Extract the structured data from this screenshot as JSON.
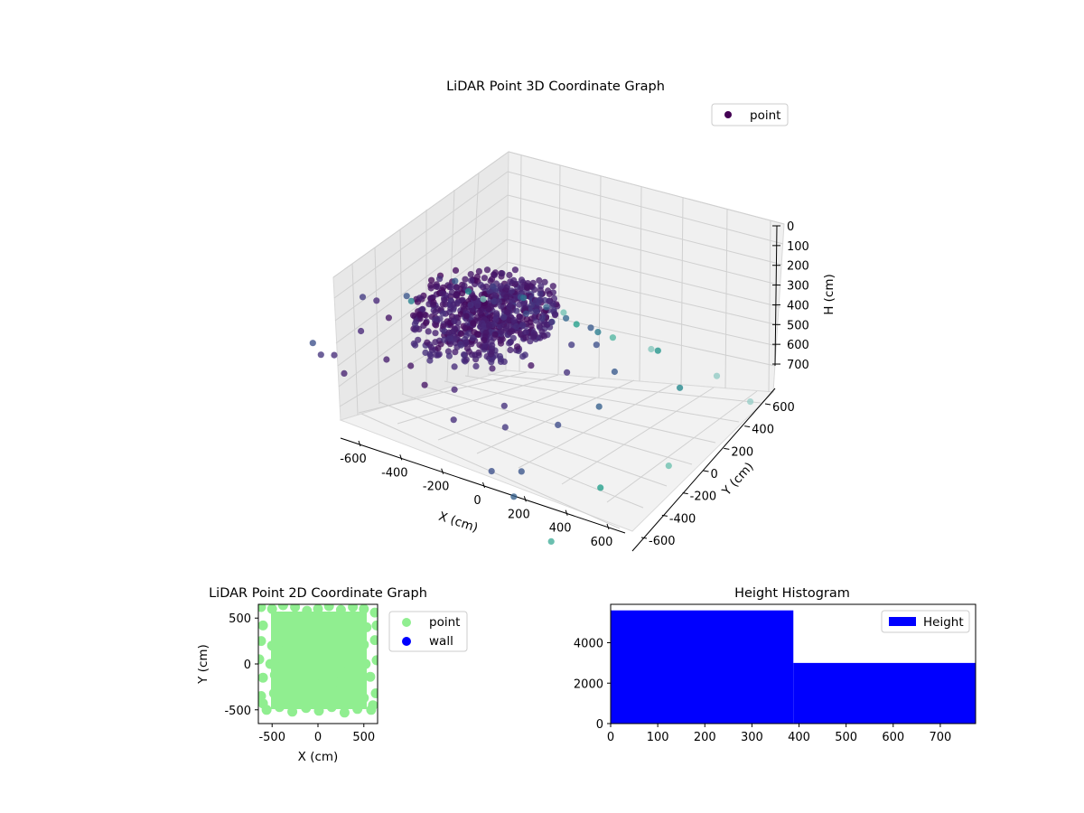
{
  "chart_data": [
    {
      "type": "scatter",
      "title": "LiDAR Point 3D Coordinate Graph",
      "xlabel": "X (cm)",
      "ylabel": "Y (cm)",
      "zlabel": "H (cm)",
      "xlim": [
        -650,
        650
      ],
      "ylim": [
        -650,
        650
      ],
      "zlim": [
        0,
        780
      ],
      "z_inverted": true,
      "x_ticks": [
        -600,
        -400,
        -200,
        0,
        200,
        400,
        600
      ],
      "y_ticks": [
        -600,
        -400,
        -200,
        0,
        200,
        400,
        600
      ],
      "z_ticks": [
        0,
        100,
        200,
        300,
        400,
        500,
        600,
        700
      ],
      "colormap": "viridis",
      "legend": {
        "labels": [
          "point"
        ],
        "placement": "top-right"
      },
      "series": [
        {
          "name": "point",
          "color": "#440154",
          "points": [
            [
              -40,
              150,
              40
            ],
            [
              20,
              180,
              30
            ],
            [
              80,
              120,
              45
            ],
            [
              -100,
              100,
              55
            ],
            [
              130,
              190,
              35
            ],
            [
              -170,
              60,
              60
            ],
            [
              60,
              60,
              70
            ],
            [
              -60,
              -30,
              120
            ],
            [
              110,
              -60,
              160
            ],
            [
              -200,
              140,
              50
            ],
            [
              30,
              250,
              20
            ],
            [
              -130,
              250,
              25
            ],
            [
              200,
              50,
              80
            ],
            [
              -10,
              0,
              150
            ],
            [
              150,
              130,
              60
            ],
            [
              -250,
              0,
              95
            ],
            [
              -80,
              200,
              40
            ],
            [
              240,
              200,
              45
            ],
            [
              -20,
              -120,
              230
            ],
            [
              70,
              -150,
              260
            ],
            [
              -150,
              -80,
              140
            ],
            [
              180,
              -30,
              130
            ],
            [
              260,
              90,
              75
            ],
            [
              -300,
              100,
              85
            ],
            [
              10,
              60,
              110
            ],
            [
              95,
              20,
              135
            ],
            [
              -110,
              20,
              115
            ],
            [
              -200,
              -150,
              190
            ],
            [
              40,
              -250,
              330
            ],
            [
              -50,
              -250,
              310
            ],
            [
              320,
              -100,
              240
            ],
            [
              300,
              0,
              170
            ],
            [
              -350,
              -50,
              130
            ],
            [
              0,
              330,
              35
            ],
            [
              -300,
              250,
              60
            ],
            [
              350,
              250,
              55
            ],
            [
              200,
              -200,
              280
            ],
            [
              -120,
              -200,
              250
            ],
            [
              120,
              -320,
              420
            ],
            [
              -220,
              -320,
              380
            ],
            [
              450,
              -50,
              280
            ],
            [
              420,
              150,
              140
            ],
            [
              -450,
              150,
              110
            ],
            [
              -420,
              -200,
              280
            ],
            [
              -560,
              100,
              170
            ],
            [
              -500,
              -350,
              470
            ],
            [
              -380,
              430,
              120
            ],
            [
              420,
              450,
              160
            ],
            [
              520,
              300,
              230
            ],
            [
              560,
              -250,
              470
            ],
            [
              300,
              -420,
              520
            ],
            [
              -100,
              -450,
              560
            ],
            [
              80,
              480,
              60
            ],
            [
              -250,
              520,
              90
            ],
            [
              250,
              520,
              130
            ],
            [
              600,
              600,
              300
            ],
            [
              480,
              580,
              240
            ],
            [
              -600,
              300,
              240
            ],
            [
              -620,
              -550,
              700
            ],
            [
              -300,
              -600,
              690
            ],
            [
              100,
              -600,
              720
            ],
            [
              400,
              -600,
              740
            ],
            [
              600,
              -550,
              750
            ],
            [
              620,
              200,
              560
            ],
            [
              630,
              450,
              610
            ],
            [
              -580,
              600,
              180
            ],
            [
              -600,
              500,
              200
            ],
            [
              -620,
              -200,
              440
            ],
            [
              650,
              -100,
              680
            ],
            [
              0,
              -520,
              640
            ],
            [
              -450,
              420,
              150
            ],
            [
              -160,
              410,
              80
            ],
            [
              160,
              420,
              100
            ],
            [
              350,
              380,
              140
            ],
            [
              520,
              100,
              300
            ],
            [
              -380,
              300,
              110
            ],
            [
              -500,
              -50,
              260
            ],
            [
              220,
              300,
              75
            ],
            [
              -40,
              420,
              60
            ],
            [
              560,
              520,
              260
            ]
          ]
        }
      ]
    },
    {
      "type": "scatter",
      "title": "LiDAR Point 2D Coordinate Graph",
      "xlabel": "X (cm)",
      "ylabel": "Y (cm)",
      "xlim": [
        -650,
        650
      ],
      "ylim": [
        -650,
        650
      ],
      "x_ticks": [
        -500,
        0,
        500
      ],
      "y_ticks": [
        -500,
        0,
        500
      ],
      "legend": {
        "labels": [
          "point",
          "wall"
        ],
        "placement": "outside-right"
      },
      "series": [
        {
          "name": "point",
          "color": "#90ee90",
          "points": [
            [
              -620,
              620
            ],
            [
              -500,
              600
            ],
            [
              -380,
              640
            ],
            [
              -250,
              620
            ],
            [
              -120,
              580
            ],
            [
              0,
              600
            ],
            [
              120,
              630
            ],
            [
              250,
              590
            ],
            [
              380,
              620
            ],
            [
              500,
              600
            ],
            [
              620,
              560
            ],
            [
              -600,
              420
            ],
            [
              -450,
              400
            ],
            [
              -320,
              450
            ],
            [
              -200,
              380
            ],
            [
              -80,
              420
            ],
            [
              40,
              400
            ],
            [
              160,
              450
            ],
            [
              280,
              380
            ],
            [
              400,
              430
            ],
            [
              530,
              400
            ],
            [
              640,
              420
            ],
            [
              -620,
              250
            ],
            [
              -500,
              200
            ],
            [
              -360,
              240
            ],
            [
              -220,
              200
            ],
            [
              -100,
              260
            ],
            [
              20,
              220
            ],
            [
              140,
              250
            ],
            [
              260,
              200
            ],
            [
              380,
              240
            ],
            [
              500,
              210
            ],
            [
              620,
              260
            ],
            [
              -640,
              50
            ],
            [
              -520,
              0
            ],
            [
              -400,
              60
            ],
            [
              -270,
              10
            ],
            [
              -140,
              50
            ],
            [
              0,
              0
            ],
            [
              130,
              40
            ],
            [
              260,
              10
            ],
            [
              390,
              50
            ],
            [
              520,
              0
            ],
            [
              640,
              40
            ],
            [
              -600,
              -150
            ],
            [
              -470,
              -120
            ],
            [
              -340,
              -180
            ],
            [
              -210,
              -130
            ],
            [
              -80,
              -170
            ],
            [
              50,
              -140
            ],
            [
              180,
              -190
            ],
            [
              310,
              -130
            ],
            [
              440,
              -170
            ],
            [
              570,
              -140
            ],
            [
              -620,
              -350
            ],
            [
              -480,
              -320
            ],
            [
              -340,
              -380
            ],
            [
              -200,
              -330
            ],
            [
              -60,
              -370
            ],
            [
              80,
              -340
            ],
            [
              220,
              -390
            ],
            [
              360,
              -330
            ],
            [
              500,
              -370
            ],
            [
              630,
              -320
            ],
            [
              -560,
              -500
            ],
            [
              -420,
              -470
            ],
            [
              -280,
              -520
            ],
            [
              -130,
              -480
            ],
            [
              10,
              -510
            ],
            [
              150,
              -470
            ],
            [
              290,
              -530
            ],
            [
              430,
              -490
            ],
            [
              580,
              -500
            ],
            [
              -600,
              -430
            ],
            [
              600,
              -450
            ]
          ]
        },
        {
          "name": "wall",
          "color": "#0000ff",
          "points": []
        }
      ]
    },
    {
      "type": "bar",
      "title": "Height Histogram",
      "xlim": [
        0,
        775
      ],
      "ylim": [
        0,
        5900
      ],
      "x_ticks": [
        0,
        100,
        200,
        300,
        400,
        500,
        600,
        700
      ],
      "y_ticks": [
        0,
        2000,
        4000
      ],
      "legend": {
        "labels": [
          "Height"
        ],
        "placement": "top-right"
      },
      "series": [
        {
          "name": "Height",
          "color": "#0000ff",
          "bins": [
            {
              "from": 0,
              "to": 388,
              "count": 5600
            },
            {
              "from": 388,
              "to": 775,
              "count": 3000
            }
          ]
        }
      ]
    }
  ]
}
